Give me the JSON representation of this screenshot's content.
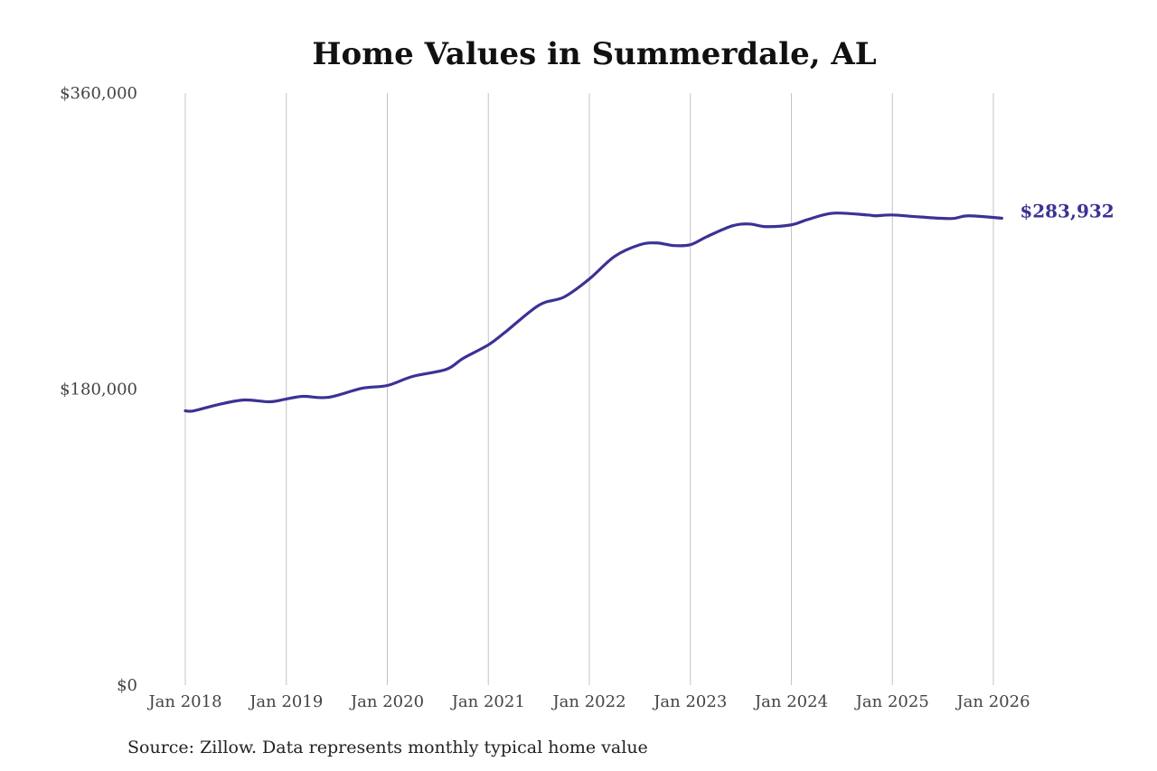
{
  "chart_data": {
    "type": "line",
    "title": "Home Values in Summerdale, AL",
    "source": "Source: Zillow. Data represents monthly typical home value",
    "xlabel": "",
    "ylabel": "",
    "ylim": [
      0,
      360000
    ],
    "xlim": [
      "2018-01",
      "2026-01"
    ],
    "y_ticks": [
      0,
      180000,
      360000
    ],
    "y_tick_labels": [
      "$0",
      "$180,000",
      "$360,000"
    ],
    "x_ticks": [
      "2018-01",
      "2019-01",
      "2020-01",
      "2021-01",
      "2022-01",
      "2023-01",
      "2024-01",
      "2025-01",
      "2026-01"
    ],
    "x_tick_labels": [
      "Jan 2018",
      "Jan 2019",
      "Jan 2020",
      "Jan 2021",
      "Jan 2022",
      "Jan 2023",
      "Jan 2024",
      "Jan 2025",
      "Jan 2026"
    ],
    "grid": "vertical lines at each January",
    "line_color": "#3b3295",
    "end_label": "$283,932",
    "series": [
      {
        "points": [
          [
            "2018-01",
            166800
          ],
          [
            "2018-02",
            166800
          ],
          [
            "2018-05",
            170700
          ],
          [
            "2018-08",
            173400
          ],
          [
            "2018-11",
            172300
          ],
          [
            "2019-01",
            174000
          ],
          [
            "2019-03",
            175600
          ],
          [
            "2019-06",
            175000
          ],
          [
            "2019-10",
            180500
          ],
          [
            "2020-01",
            182200
          ],
          [
            "2020-04",
            187700
          ],
          [
            "2020-08",
            192000
          ],
          [
            "2020-10",
            198700
          ],
          [
            "2021-01",
            206900
          ],
          [
            "2021-03",
            214600
          ],
          [
            "2021-07",
            231000
          ],
          [
            "2021-10",
            236000
          ],
          [
            "2022-01",
            247000
          ],
          [
            "2022-04",
            260700
          ],
          [
            "2022-07",
            267800
          ],
          [
            "2022-09",
            268900
          ],
          [
            "2022-11",
            267300
          ],
          [
            "2023-01",
            267800
          ],
          [
            "2023-03",
            272800
          ],
          [
            "2023-06",
            279300
          ],
          [
            "2023-08",
            280400
          ],
          [
            "2023-10",
            278800
          ],
          [
            "2024-01",
            279900
          ],
          [
            "2024-03",
            283200
          ],
          [
            "2024-06",
            287000
          ],
          [
            "2024-10",
            285900
          ],
          [
            "2024-11",
            285400
          ],
          [
            "2025-01",
            285900
          ],
          [
            "2025-04",
            284800
          ],
          [
            "2025-08",
            283700
          ],
          [
            "2025-10",
            285400
          ],
          [
            "2026-02",
            283932
          ]
        ]
      }
    ]
  }
}
